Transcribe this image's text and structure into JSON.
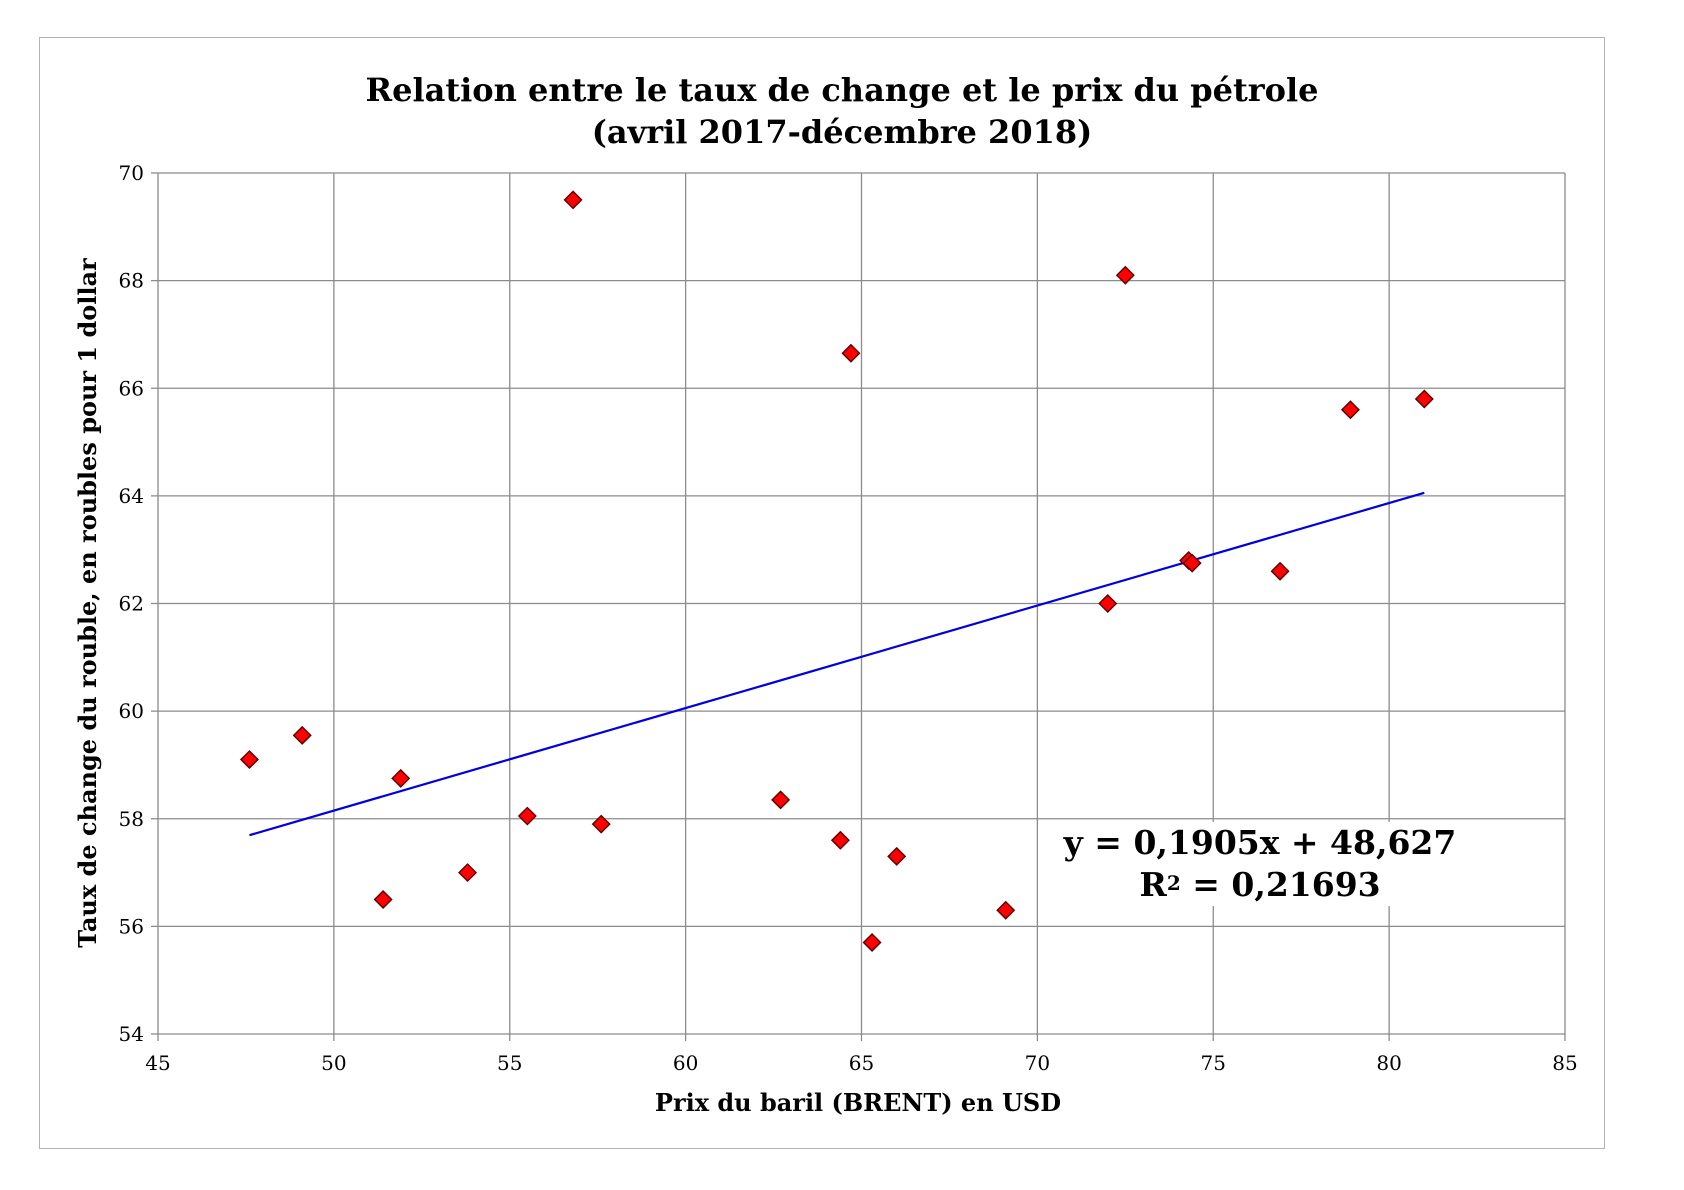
{
  "chart_data": {
    "type": "scatter",
    "title_line1": "Relation entre le taux de change et le prix du pétrole",
    "title_line2": "(avril 2017-décembre 2018)",
    "xlabel": "Prix du baril (BRENT) en USD",
    "ylabel": "Taux de change du rouble, en roubles pour 1 dollar",
    "xlim": [
      45,
      85
    ],
    "ylim": [
      54,
      70
    ],
    "x_ticks": [
      "45",
      "50",
      "55",
      "60",
      "65",
      "70",
      "75",
      "80",
      "85"
    ],
    "y_ticks": [
      "54",
      "56",
      "58",
      "60",
      "62",
      "64",
      "66",
      "68",
      "70"
    ],
    "grid": true,
    "marker": {
      "shape": "diamond",
      "color": "#ff0000"
    },
    "trendline": {
      "color": "#0000e0",
      "slope": 0.1905,
      "intercept": 48.627,
      "x_range": [
        47.6,
        81.0
      ]
    },
    "equation_line1": "y = 0,1905x + 48,627",
    "equation_r2_prefix": "R",
    "equation_r2_sup": "2",
    "equation_r2_value": " = 0,21693",
    "points": [
      {
        "x": 47.6,
        "y": 59.1
      },
      {
        "x": 49.1,
        "y": 59.55
      },
      {
        "x": 51.4,
        "y": 56.5
      },
      {
        "x": 51.9,
        "y": 58.75
      },
      {
        "x": 53.8,
        "y": 57.0
      },
      {
        "x": 55.5,
        "y": 58.05
      },
      {
        "x": 56.8,
        "y": 69.5
      },
      {
        "x": 57.6,
        "y": 57.9
      },
      {
        "x": 62.7,
        "y": 58.35
      },
      {
        "x": 64.4,
        "y": 57.6
      },
      {
        "x": 64.7,
        "y": 66.65
      },
      {
        "x": 65.3,
        "y": 55.7
      },
      {
        "x": 66.0,
        "y": 57.3
      },
      {
        "x": 69.1,
        "y": 56.3
      },
      {
        "x": 72.0,
        "y": 62.0
      },
      {
        "x": 72.5,
        "y": 68.1
      },
      {
        "x": 74.3,
        "y": 62.8
      },
      {
        "x": 74.4,
        "y": 62.75
      },
      {
        "x": 76.9,
        "y": 62.6
      },
      {
        "x": 78.9,
        "y": 65.6
      },
      {
        "x": 81.0,
        "y": 65.8
      }
    ]
  }
}
